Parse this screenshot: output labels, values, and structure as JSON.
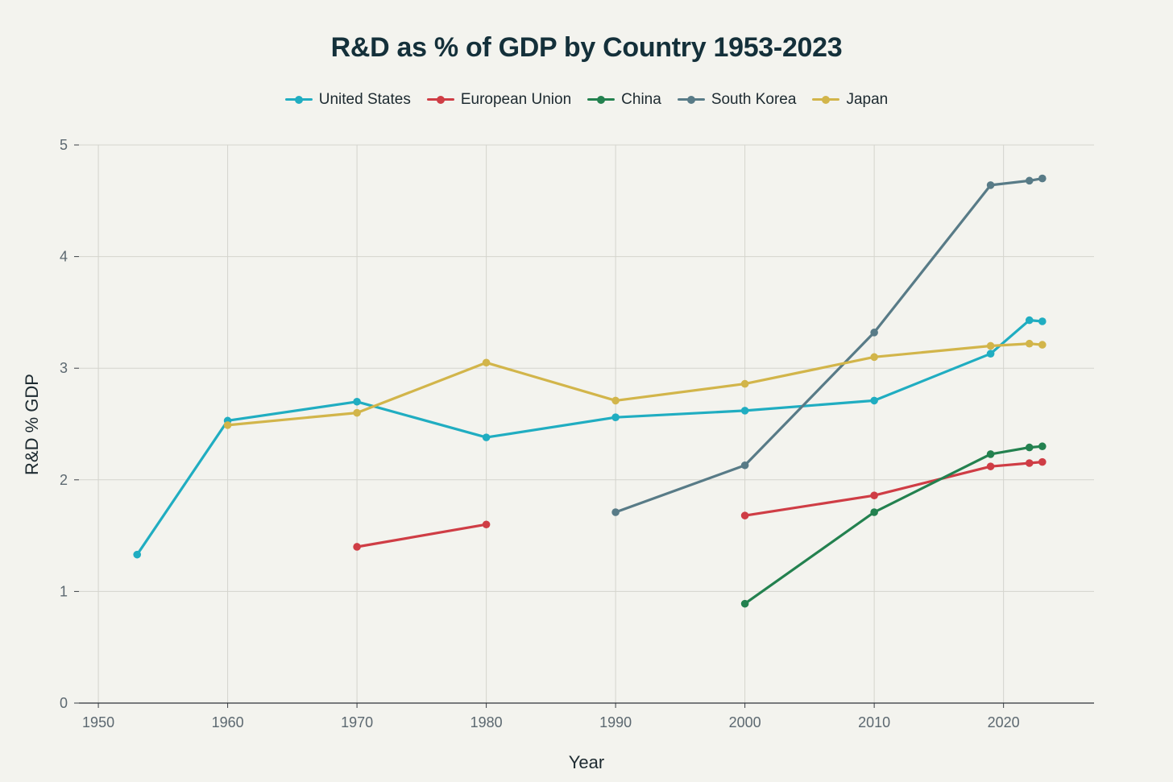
{
  "chart_data": {
    "type": "line",
    "title": "R&D as % of GDP by Country 1953-2023",
    "xlabel": "Year",
    "ylabel": "R&D % GDP",
    "xlim": [
      1948.5,
      2027
    ],
    "ylim": [
      0,
      5
    ],
    "x_ticks": [
      1950,
      1960,
      1970,
      1980,
      1990,
      2000,
      2010,
      2020
    ],
    "y_ticks": [
      0,
      1,
      2,
      3,
      4,
      5
    ],
    "grid": true,
    "legend_position": "top-center",
    "series": [
      {
        "name": "United States",
        "color": "#20adc1",
        "points": [
          [
            1953,
            1.33
          ],
          [
            1960,
            2.53
          ],
          [
            1970,
            2.7
          ],
          [
            1980,
            2.38
          ],
          [
            1990,
            2.56
          ],
          [
            2000,
            2.62
          ],
          [
            2010,
            2.71
          ],
          [
            2019,
            3.13
          ],
          [
            2022,
            3.43
          ],
          [
            2023,
            3.42
          ]
        ]
      },
      {
        "name": "European Union",
        "color": "#cf3d45",
        "points": [
          [
            1970,
            1.4
          ],
          [
            1980,
            1.6
          ],
          null,
          [
            2000,
            1.68
          ],
          [
            2010,
            1.86
          ],
          [
            2019,
            2.12
          ],
          [
            2022,
            2.15
          ],
          [
            2023,
            2.16
          ]
        ]
      },
      {
        "name": "China",
        "color": "#23814f",
        "points": [
          [
            2000,
            0.89
          ],
          [
            2010,
            1.71
          ],
          [
            2019,
            2.23
          ],
          [
            2022,
            2.29
          ],
          [
            2023,
            2.3
          ]
        ]
      },
      {
        "name": "South Korea",
        "color": "#587b87",
        "points": [
          [
            1990,
            1.71
          ],
          [
            2000,
            2.13
          ],
          [
            2010,
            3.32
          ],
          [
            2019,
            4.64
          ],
          [
            2022,
            4.68
          ],
          [
            2023,
            4.7
          ]
        ]
      },
      {
        "name": "Japan",
        "color": "#d2b54a",
        "points": [
          [
            1960,
            2.49
          ],
          [
            1970,
            2.6
          ],
          [
            1980,
            3.05
          ],
          [
            1990,
            2.71
          ],
          [
            2000,
            2.86
          ],
          [
            2010,
            3.1
          ],
          [
            2019,
            3.2
          ],
          [
            2022,
            3.22
          ],
          [
            2023,
            3.21
          ]
        ]
      }
    ]
  }
}
